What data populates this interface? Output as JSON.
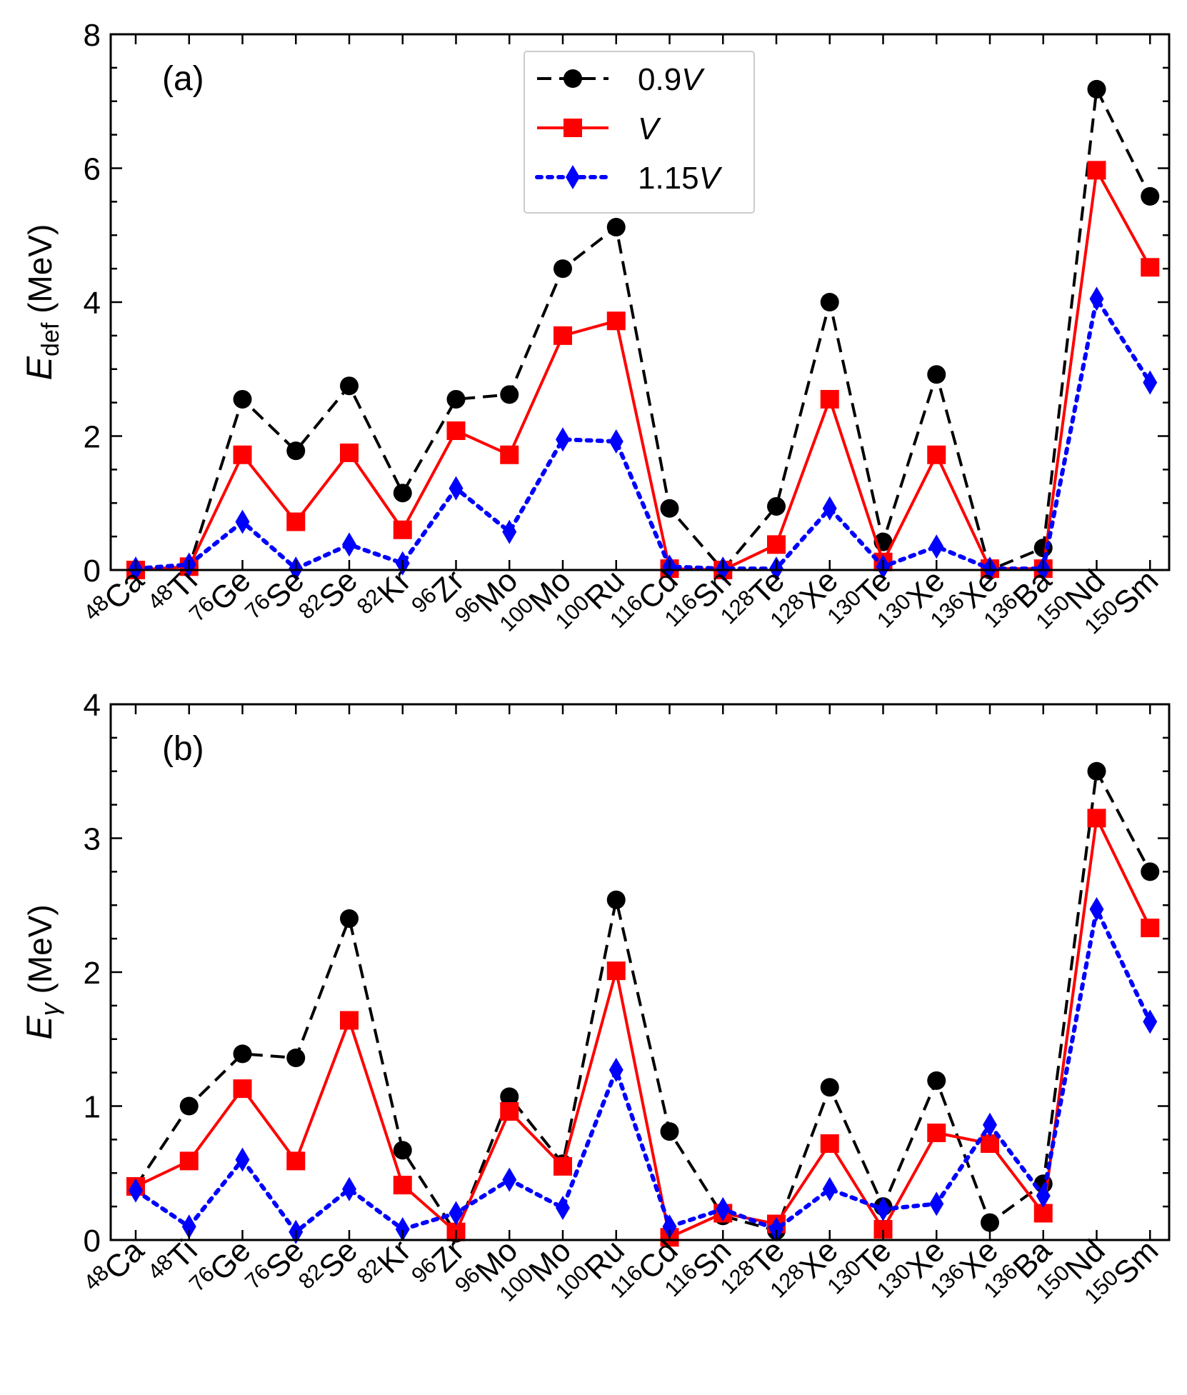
{
  "chart_data": [
    {
      "type": "line",
      "panel_label": "(a)",
      "ylabel": {
        "symbol": "E",
        "subscript": "def",
        "unit": " (MeV)"
      },
      "ylim": [
        0,
        8
      ],
      "yticks": [
        0,
        2,
        4,
        6,
        8
      ],
      "categories": [
        {
          "iso": "48",
          "el": "Ca"
        },
        {
          "iso": "48",
          "el": "Ti"
        },
        {
          "iso": "76",
          "el": "Ge"
        },
        {
          "iso": "76",
          "el": "Se"
        },
        {
          "iso": "82",
          "el": "Se"
        },
        {
          "iso": "82",
          "el": "Kr"
        },
        {
          "iso": "96",
          "el": "Zr"
        },
        {
          "iso": "96",
          "el": "Mo"
        },
        {
          "iso": "100",
          "el": "Mo"
        },
        {
          "iso": "100",
          "el": "Ru"
        },
        {
          "iso": "116",
          "el": "Cd"
        },
        {
          "iso": "116",
          "el": "Sn"
        },
        {
          "iso": "128",
          "el": "Te"
        },
        {
          "iso": "128",
          "el": "Xe"
        },
        {
          "iso": "130",
          "el": "Te"
        },
        {
          "iso": "130",
          "el": "Xe"
        },
        {
          "iso": "136",
          "el": "Xe"
        },
        {
          "iso": "136",
          "el": "Ba"
        },
        {
          "iso": "150",
          "el": "Nd"
        },
        {
          "iso": "150",
          "el": "Sm"
        }
      ],
      "legend": "top-center",
      "series": [
        {
          "name": "0.9",
          "name_italic": "V",
          "color": "#000000",
          "style": "dashed",
          "marker": "circle",
          "values": [
            0.0,
            0.05,
            2.55,
            1.78,
            2.75,
            1.15,
            2.55,
            2.62,
            4.5,
            5.12,
            0.92,
            0.0,
            0.95,
            4.0,
            0.42,
            2.92,
            0.0,
            0.33,
            7.18,
            5.58
          ]
        },
        {
          "name": "",
          "name_italic": "V",
          "color": "#ff0000",
          "style": "solid",
          "marker": "square",
          "values": [
            0.0,
            0.05,
            1.72,
            0.72,
            1.75,
            0.6,
            2.08,
            1.72,
            3.5,
            3.72,
            0.02,
            0.0,
            0.38,
            2.55,
            0.12,
            1.72,
            0.02,
            0.02,
            5.97,
            4.52
          ]
        },
        {
          "name": "1.15",
          "name_italic": "V",
          "color": "#0000ff",
          "style": "dotted",
          "marker": "diamond",
          "values": [
            0.02,
            0.08,
            0.72,
            0.02,
            0.38,
            0.1,
            1.22,
            0.57,
            1.95,
            1.92,
            0.05,
            0.02,
            0.02,
            0.92,
            0.05,
            0.35,
            0.02,
            0.02,
            4.05,
            2.8
          ]
        }
      ]
    },
    {
      "type": "line",
      "panel_label": "(b)",
      "ylabel": {
        "symbol": "E",
        "subscript": "γ",
        "unit": " (MeV)"
      },
      "ylim": [
        0,
        4
      ],
      "yticks": [
        0,
        1,
        2,
        3,
        4
      ],
      "categories": [
        {
          "iso": "48",
          "el": "Ca"
        },
        {
          "iso": "48",
          "el": "Ti"
        },
        {
          "iso": "76",
          "el": "Ge"
        },
        {
          "iso": "76",
          "el": "Se"
        },
        {
          "iso": "82",
          "el": "Se"
        },
        {
          "iso": "82",
          "el": "Kr"
        },
        {
          "iso": "96",
          "el": "Zr"
        },
        {
          "iso": "96",
          "el": "Mo"
        },
        {
          "iso": "100",
          "el": "Mo"
        },
        {
          "iso": "100",
          "el": "Ru"
        },
        {
          "iso": "116",
          "el": "Cd"
        },
        {
          "iso": "116",
          "el": "Sn"
        },
        {
          "iso": "128",
          "el": "Te"
        },
        {
          "iso": "128",
          "el": "Xe"
        },
        {
          "iso": "130",
          "el": "Te"
        },
        {
          "iso": "130",
          "el": "Xe"
        },
        {
          "iso": "136",
          "el": "Xe"
        },
        {
          "iso": "136",
          "el": "Ba"
        },
        {
          "iso": "150",
          "el": "Nd"
        },
        {
          "iso": "150",
          "el": "Sm"
        }
      ],
      "series": [
        {
          "name": "0.9",
          "name_italic": "V",
          "color": "#000000",
          "style": "dashed",
          "marker": "circle",
          "values": [
            0.4,
            1.0,
            1.39,
            1.36,
            2.4,
            0.67,
            0.05,
            1.07,
            0.57,
            2.54,
            0.81,
            0.18,
            0.07,
            1.14,
            0.25,
            1.19,
            0.13,
            0.42,
            3.5,
            2.75
          ]
        },
        {
          "name": "",
          "name_italic": "V",
          "color": "#ff0000",
          "style": "solid",
          "marker": "square",
          "values": [
            0.4,
            0.59,
            1.13,
            0.59,
            1.64,
            0.41,
            0.06,
            0.96,
            0.55,
            2.01,
            0.02,
            0.2,
            0.12,
            0.72,
            0.08,
            0.8,
            0.72,
            0.2,
            3.15,
            2.33
          ]
        },
        {
          "name": "1.15",
          "name_italic": "V",
          "color": "#0000ff",
          "style": "dotted",
          "marker": "diamond",
          "values": [
            0.37,
            0.1,
            0.6,
            0.06,
            0.38,
            0.08,
            0.2,
            0.45,
            0.24,
            1.27,
            0.1,
            0.23,
            0.08,
            0.38,
            0.23,
            0.27,
            0.86,
            0.33,
            2.47,
            1.63
          ]
        }
      ]
    }
  ]
}
